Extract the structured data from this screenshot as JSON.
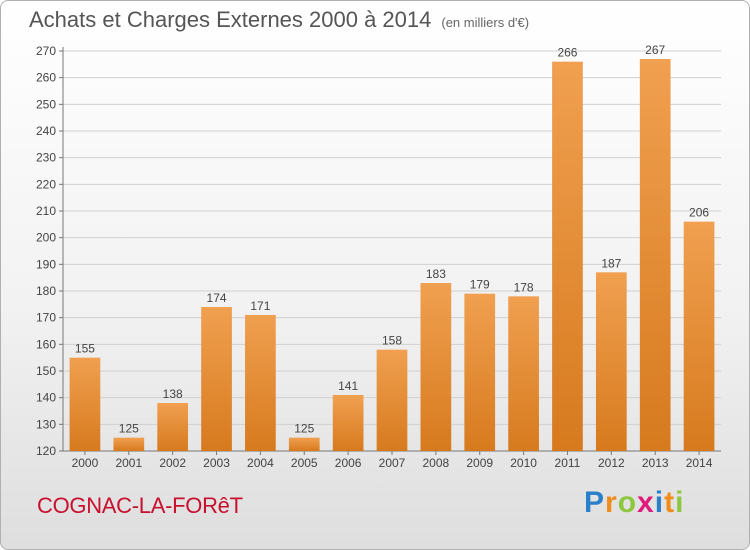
{
  "header": {
    "title": "Achats et Charges Externes 2000 à 2014",
    "unit": "(en milliers d'€)"
  },
  "footer": {
    "town": "COGNAC-LA-FORêT",
    "brand_letters": [
      {
        "ch": "P",
        "color": "#2a7fc9"
      },
      {
        "ch": "r",
        "color": "#f08c1a"
      },
      {
        "ch": "o",
        "color": "#8dc63f"
      },
      {
        "ch": "x",
        "color": "#e0197d"
      },
      {
        "ch": "i",
        "color": "#2a7fc9"
      },
      {
        "ch": "t",
        "color": "#f08c1a"
      },
      {
        "ch": "i",
        "color": "#8dc63f"
      }
    ]
  },
  "chart_data": {
    "type": "bar",
    "categories": [
      "2000",
      "2001",
      "2002",
      "2003",
      "2004",
      "2005",
      "2006",
      "2007",
      "2008",
      "2009",
      "2010",
      "2011",
      "2012",
      "2013",
      "2014"
    ],
    "values": [
      155,
      125,
      138,
      174,
      171,
      125,
      141,
      158,
      183,
      179,
      178,
      266,
      187,
      267,
      206
    ],
    "ylim": [
      120,
      270
    ],
    "yticks": [
      120,
      130,
      140,
      150,
      160,
      170,
      180,
      190,
      200,
      210,
      220,
      230,
      240,
      250,
      260,
      270
    ],
    "grid": true,
    "bar_color": "#f0a050",
    "bar_color_dark": "#d77a1e"
  }
}
